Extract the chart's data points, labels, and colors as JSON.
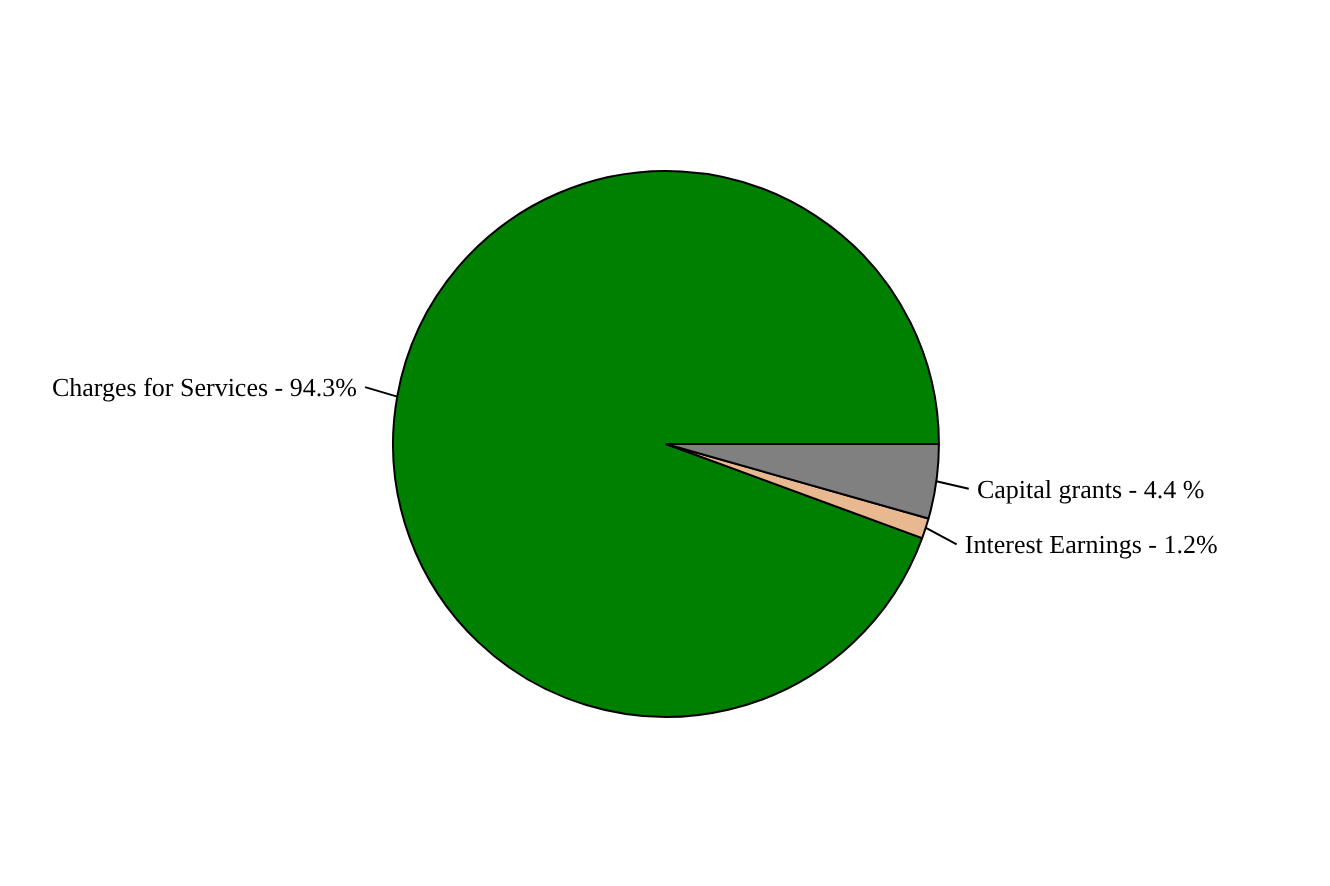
{
  "chart_data": {
    "type": "pie",
    "categories": [
      "Charges for Services - 94.3%",
      "Interest Earnings - 1.2%",
      "Capital grants - 4.4 %"
    ],
    "values": [
      94.3,
      1.2,
      4.4
    ],
    "colors": [
      "#008000",
      "#e8b890",
      "#808080"
    ]
  }
}
